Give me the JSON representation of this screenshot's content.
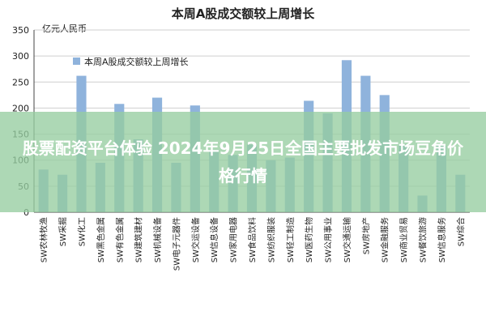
{
  "chart_data": {
    "type": "bar",
    "title": "本周A股成交额较上周增长",
    "unit_label": "亿元人民币",
    "legend": {
      "position": "top-left",
      "label": "本周A股成交额较上周增长"
    },
    "ylim": [
      0,
      350
    ],
    "yticks": [
      0,
      50,
      100,
      150,
      200,
      250,
      300,
      350
    ],
    "grid": true,
    "bar_color": "#8fb3dc",
    "categories": [
      "SW农林牧渔",
      "SW采掘",
      "SW化工",
      "SW黑色金属",
      "SW有色金属",
      "SW建筑建材",
      "SW机械设备",
      "SW电子元器件",
      "SW交运设备",
      "SW信息设备",
      "SW家用电器",
      "SW食品饮料",
      "SW纺织服装",
      "SW轻工制造",
      "SW医药生物",
      "SW公用事业",
      "SW交通运输",
      "SW房地产",
      "SW金融服务",
      "SW商业贸易",
      "SW餐饮旅游",
      "SW信息服务",
      "SW综合"
    ],
    "series": [
      {
        "values": [
          82,
          72,
          262,
          95,
          208,
          140,
          220,
          95,
          205,
          120,
          110,
          130,
          100,
          105,
          214,
          190,
          292,
          262,
          225,
          130,
          32,
          128,
          72
        ]
      }
    ]
  },
  "overlay": {
    "text": "股票配资平台体验 2024年9月25日全国主要批发市场豆角价格行情",
    "color": "#96cda0"
  }
}
